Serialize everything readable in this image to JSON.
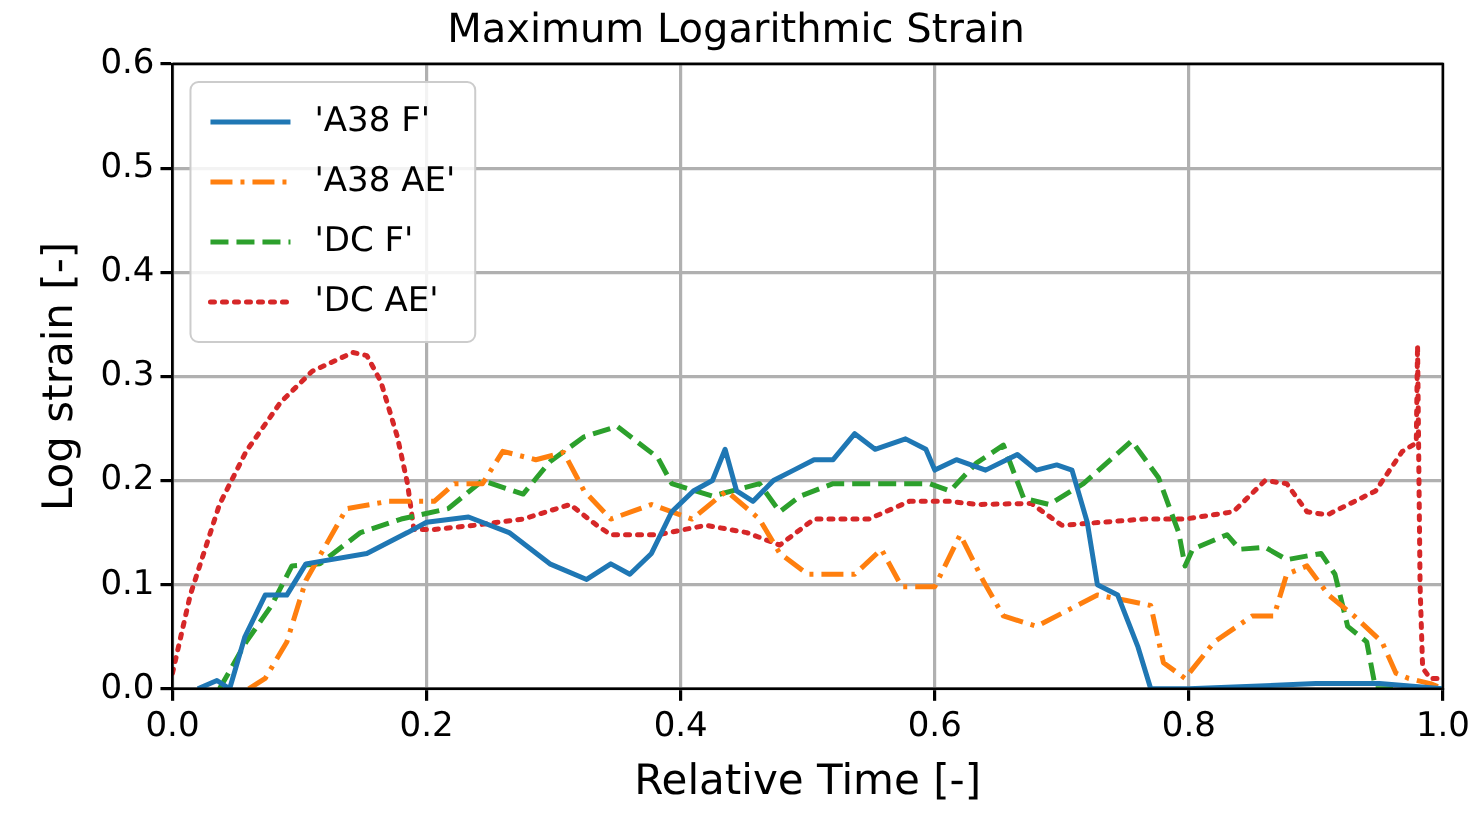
{
  "chart_data": {
    "type": "line",
    "title": "Maximum Logarithmic Strain",
    "xlabel": "Relative Time [-]",
    "ylabel": "Log strain [-]",
    "xlim": [
      0,
      1
    ],
    "ylim": [
      0,
      0.6
    ],
    "xticks": [
      {
        "value": 0,
        "label": "0.0"
      },
      {
        "value": 0.2,
        "label": "0.2"
      },
      {
        "value": 0.4,
        "label": "0.4"
      },
      {
        "value": 0.6,
        "label": "0.6"
      },
      {
        "value": 0.8,
        "label": "0.8"
      },
      {
        "value": 1,
        "label": "1.0"
      }
    ],
    "yticks": [
      {
        "value": 0,
        "label": "0.0"
      },
      {
        "value": 0.1,
        "label": "0.1"
      },
      {
        "value": 0.2,
        "label": "0.2"
      },
      {
        "value": 0.3,
        "label": "0.3"
      },
      {
        "value": 0.4,
        "label": "0.4"
      },
      {
        "value": 0.5,
        "label": "0.5"
      },
      {
        "value": 0.6,
        "label": "0.6"
      }
    ],
    "grid": true,
    "legend": "top left",
    "marker": "none",
    "series": [
      {
        "name": "'A38 F'",
        "color": "#1f77b4",
        "line_style": "solid",
        "x": [
          0.02,
          0.035,
          0.045,
          0.057,
          0.073,
          0.09,
          0.105,
          0.153,
          0.185,
          0.2,
          0.233,
          0.265,
          0.297,
          0.326,
          0.345,
          0.36,
          0.377,
          0.393,
          0.41,
          0.425,
          0.435,
          0.444,
          0.457,
          0.473,
          0.489,
          0.505,
          0.52,
          0.537,
          0.553,
          0.577,
          0.593,
          0.6,
          0.617,
          0.64,
          0.665,
          0.68,
          0.696,
          0.708,
          0.72,
          0.728,
          0.744,
          0.752,
          0.76,
          0.77,
          0.8,
          0.9,
          0.95,
          1.0
        ],
        "values": [
          0,
          0.008,
          0,
          0.05,
          0.09,
          0.09,
          0.12,
          0.13,
          0.15,
          0.16,
          0.165,
          0.15,
          0.12,
          0.105,
          0.12,
          0.11,
          0.13,
          0.17,
          0.19,
          0.2,
          0.23,
          0.19,
          0.18,
          0.2,
          0.21,
          0.22,
          0.22,
          0.245,
          0.23,
          0.24,
          0.23,
          0.21,
          0.22,
          0.21,
          0.225,
          0.21,
          0.215,
          0.21,
          0.16,
          0.1,
          0.09,
          0.065,
          0.04,
          0,
          0,
          0.005,
          0.005,
          0
        ]
      },
      {
        "name": "'A38 AE'",
        "color": "#ff7f0e",
        "line_style": "dashdot",
        "x": [
          0.06,
          0.073,
          0.09,
          0.105,
          0.137,
          0.17,
          0.206,
          0.222,
          0.244,
          0.26,
          0.286,
          0.308,
          0.324,
          0.345,
          0.377,
          0.409,
          0.436,
          0.462,
          0.478,
          0.5,
          0.537,
          0.558,
          0.574,
          0.6,
          0.62,
          0.638,
          0.654,
          0.68,
          0.728,
          0.75,
          0.77,
          0.78,
          0.797,
          0.82,
          0.85,
          0.867,
          0.877,
          0.893,
          0.91,
          0.93,
          0.952,
          0.963,
          0.973,
          0.99,
          1.0
        ],
        "values": [
          0,
          0.01,
          0.045,
          0.104,
          0.173,
          0.18,
          0.18,
          0.197,
          0.197,
          0.228,
          0.22,
          0.227,
          0.19,
          0.163,
          0.177,
          0.163,
          0.19,
          0.163,
          0.13,
          0.11,
          0.11,
          0.134,
          0.098,
          0.098,
          0.148,
          0.104,
          0.07,
          0.06,
          0.09,
          0.085,
          0.08,
          0.025,
          0.01,
          0.045,
          0.07,
          0.07,
          0.11,
          0.118,
          0.09,
          0.07,
          0.045,
          0.015,
          0.01,
          0.005,
          0
        ]
      },
      {
        "name": "'DC F'",
        "color": "#2ca02c",
        "line_style": "dashed",
        "x": [
          0.037,
          0.058,
          0.078,
          0.094,
          0.116,
          0.148,
          0.18,
          0.217,
          0.244,
          0.276,
          0.297,
          0.324,
          0.35,
          0.382,
          0.393,
          0.425,
          0.462,
          0.478,
          0.494,
          0.52,
          0.596,
          0.612,
          0.633,
          0.654,
          0.67,
          0.69,
          0.717,
          0.755,
          0.776,
          0.792,
          0.797,
          0.803,
          0.83,
          0.84,
          0.86,
          0.877,
          0.904,
          0.915,
          0.925,
          0.94,
          0.947,
          1.0
        ],
        "values": [
          0,
          0.045,
          0.08,
          0.118,
          0.12,
          0.15,
          0.163,
          0.173,
          0.2,
          0.187,
          0.218,
          0.242,
          0.252,
          0.222,
          0.197,
          0.185,
          0.197,
          0.17,
          0.185,
          0.197,
          0.197,
          0.19,
          0.217,
          0.234,
          0.183,
          0.177,
          0.197,
          0.238,
          0.203,
          0.15,
          0.118,
          0.134,
          0.148,
          0.134,
          0.136,
          0.124,
          0.13,
          0.11,
          0.06,
          0.045,
          0,
          0
        ]
      },
      {
        "name": "'DC AE'",
        "color": "#d62728",
        "line_style": "dotted",
        "x": [
          0,
          0.014,
          0.037,
          0.058,
          0.085,
          0.11,
          0.142,
          0.153,
          0.164,
          0.177,
          0.185,
          0.19,
          0.206,
          0.238,
          0.276,
          0.313,
          0.334,
          0.345,
          0.382,
          0.42,
          0.452,
          0.478,
          0.505,
          0.548,
          0.58,
          0.612,
          0.633,
          0.676,
          0.7,
          0.765,
          0.797,
          0.835,
          0.86,
          0.877,
          0.893,
          0.909,
          0.947,
          0.968,
          0.979,
          0.98,
          0.982,
          0.984,
          0.99,
          1.0
        ],
        "values": [
          0.015,
          0.09,
          0.177,
          0.228,
          0.275,
          0.305,
          0.323,
          0.32,
          0.295,
          0.242,
          0.197,
          0.153,
          0.153,
          0.157,
          0.163,
          0.177,
          0.157,
          0.148,
          0.148,
          0.157,
          0.15,
          0.138,
          0.163,
          0.163,
          0.18,
          0.18,
          0.177,
          0.178,
          0.157,
          0.163,
          0.163,
          0.17,
          0.2,
          0.197,
          0.17,
          0.167,
          0.19,
          0.228,
          0.236,
          0.33,
          0.098,
          0.02,
          0.01,
          0.01
        ]
      }
    ]
  }
}
